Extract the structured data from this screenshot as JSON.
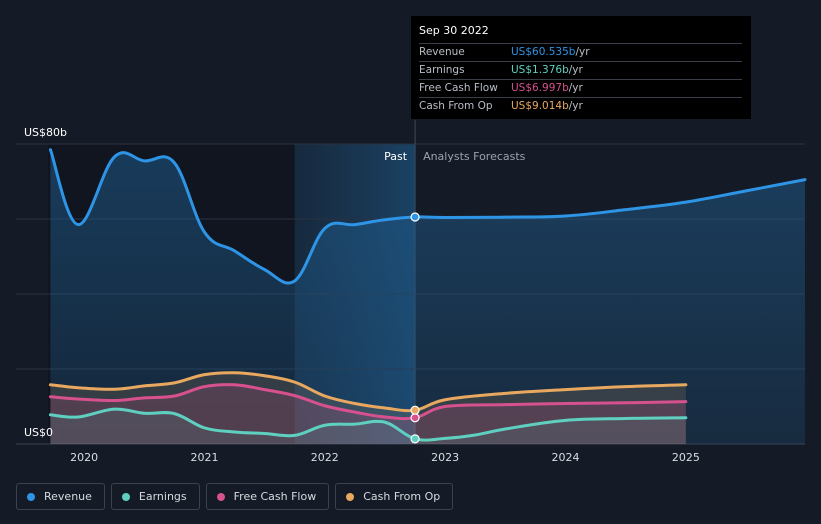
{
  "chart_data": {
    "type": "line",
    "y_label_top": "US$80b",
    "y_label_bottom": "US$0",
    "ylim": [
      0,
      80
    ],
    "xlim": [
      2019.7,
      2025.99
    ],
    "x_ticks": [
      "2020",
      "2021",
      "2022",
      "2023",
      "2024",
      "2025"
    ],
    "x_tick_values": [
      2020,
      2021,
      2022,
      2023,
      2024,
      2025
    ],
    "past_label": "Past",
    "forecast_label": "Analysts Forecasts",
    "divider_x": 2022.75,
    "series": [
      {
        "name": "Revenue",
        "color": "#2e95e6",
        "x": [
          2019.72,
          2019.95,
          2020.25,
          2020.5,
          2020.75,
          2021.0,
          2021.25,
          2021.5,
          2021.75,
          2022.0,
          2022.25,
          2022.5,
          2022.75,
          2023.0,
          2023.5,
          2024.0,
          2024.5,
          2025.0,
          2025.5,
          2025.99
        ],
        "y": [
          78.5,
          58.5,
          76.5,
          75.5,
          75,
          56.5,
          51.5,
          46.5,
          43.5,
          57.5,
          58.5,
          59.8,
          60.535,
          60.4,
          60.5,
          60.8,
          62.5,
          64.5,
          67.5,
          70.5
        ]
      },
      {
        "name": "Earnings",
        "color": "#5fd0c0",
        "x": [
          2019.72,
          2019.95,
          2020.25,
          2020.5,
          2020.75,
          2021.0,
          2021.25,
          2021.5,
          2021.75,
          2022.0,
          2022.25,
          2022.5,
          2022.75,
          2023.0,
          2023.25,
          2023.5,
          2024.0,
          2024.5,
          2025.0
        ],
        "y": [
          7.8,
          7.2,
          9.3,
          8.2,
          8.1,
          4.3,
          3.2,
          2.8,
          2.3,
          5.0,
          5.3,
          5.8,
          1.376,
          1.5,
          2.4,
          4.0,
          6.3,
          6.8,
          7.0
        ]
      },
      {
        "name": "Free Cash Flow",
        "color": "#d6518e",
        "x": [
          2019.72,
          2019.95,
          2020.25,
          2020.5,
          2020.75,
          2021.0,
          2021.25,
          2021.5,
          2021.75,
          2022.0,
          2022.25,
          2022.5,
          2022.75,
          2023.0,
          2023.5,
          2024.0,
          2024.5,
          2025.0
        ],
        "y": [
          12.6,
          12.0,
          11.6,
          12.3,
          12.8,
          15.3,
          15.8,
          14.5,
          12.9,
          10.2,
          8.5,
          7.2,
          6.997,
          10.0,
          10.5,
          10.8,
          11.0,
          11.3
        ]
      },
      {
        "name": "Cash From Op",
        "color": "#e8a860",
        "x": [
          2019.72,
          2019.95,
          2020.25,
          2020.5,
          2020.75,
          2021.0,
          2021.25,
          2021.5,
          2021.75,
          2022.0,
          2022.25,
          2022.5,
          2022.75,
          2023.0,
          2023.5,
          2024.0,
          2024.5,
          2025.0
        ],
        "y": [
          15.8,
          15.0,
          14.6,
          15.5,
          16.3,
          18.5,
          19.0,
          18.2,
          16.5,
          12.8,
          10.8,
          9.6,
          9.014,
          11.8,
          13.5,
          14.5,
          15.3,
          15.8
        ]
      }
    ]
  },
  "tooltip": {
    "date": "Sep 30 2022",
    "rows": [
      {
        "label": "Revenue",
        "value": "US$60.535b",
        "unit": " /yr",
        "color": "#2e95e6"
      },
      {
        "label": "Earnings",
        "value": "US$1.376b",
        "unit": " /yr",
        "color": "#5fd0c0"
      },
      {
        "label": "Free Cash Flow",
        "value": "US$6.997b",
        "unit": " /yr",
        "color": "#d6518e"
      },
      {
        "label": "Cash From Op",
        "value": "US$9.014b",
        "unit": " /yr",
        "color": "#e8a860"
      }
    ]
  },
  "legend": [
    {
      "label": "Revenue",
      "color": "#2e95e6"
    },
    {
      "label": "Earnings",
      "color": "#5fd0c0"
    },
    {
      "label": "Free Cash Flow",
      "color": "#d6518e"
    },
    {
      "label": "Cash From Op",
      "color": "#e8a860"
    }
  ]
}
